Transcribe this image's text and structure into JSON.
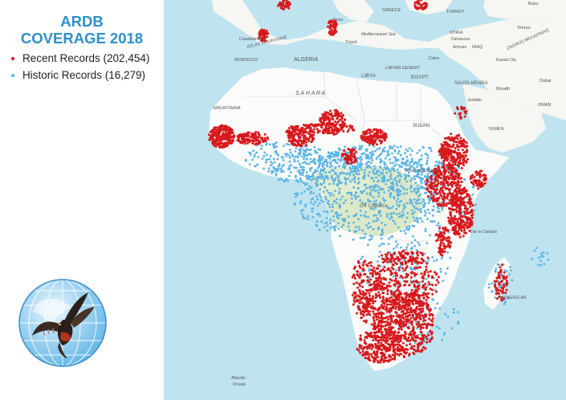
{
  "title": {
    "line1": "ARDB",
    "line2": "COVERAGE 2018"
  },
  "legend": [
    {
      "label": "Recent Records (202,454)",
      "color": "#d7191c",
      "icon": "red-dot-icon"
    },
    {
      "label": "Historic Records (16,279)",
      "color": "#5ab4e5",
      "icon": "blue-dot-icon"
    }
  ],
  "map": {
    "ocean_color": "#bfe3ef",
    "land_color": "#fbfbf9",
    "green_color": "#dbe9c8",
    "labels": {
      "algeria": "ALGERIA",
      "libya": "LIBYA",
      "egypt": "EGYPT",
      "sahara": "S A H A R A",
      "libyan_desert": "LIBYAN DESERT",
      "mauritania": "MAURITANIA",
      "morocco": "MOROCCO",
      "sudan": "SUDAN",
      "south_sudan": "SOUTH SUDAN",
      "dr_congo": "DR CONGO",
      "saudi_arabia": "SAUDI ARABIA",
      "iraq": "IRAQ",
      "syria": "SYRIA",
      "yemen": "YEMEN",
      "oman": "OMAN",
      "greece": "GREECE",
      "turkey": "TURKEY",
      "tunis": "Tunis",
      "tripoli": "Tripoli",
      "cairo": "Cairo",
      "casablanca": "Casablanca",
      "riyadh": "Riyadh",
      "jeddah": "Jeddah",
      "dubai": "Dubai",
      "tehran": "Tehran",
      "baku": "Baku",
      "damascus": "Damascus",
      "amman": "Amman",
      "kuwait_city": "Kuwait City",
      "mediterranean": "Mediterranean Sea",
      "atlas": "ATLAS MOUNTAINS",
      "zagros": "ZAGROS MOUNTAINS",
      "atlantic": "Atlantic",
      "ocean": "Ocean",
      "dar_es_salaam": "Dar es Salaam",
      "madagascar": "MADAGASCAR"
    }
  }
}
